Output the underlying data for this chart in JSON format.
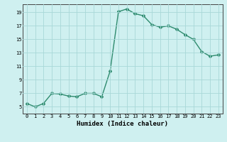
{
  "x": [
    0,
    1,
    2,
    3,
    4,
    5,
    6,
    7,
    8,
    9,
    10,
    11,
    12,
    13,
    14,
    15,
    16,
    17,
    18,
    19,
    20,
    21,
    22,
    23
  ],
  "y": [
    5.5,
    5.0,
    5.5,
    7.0,
    6.9,
    6.6,
    6.5,
    7.0,
    7.0,
    6.5,
    10.3,
    19.1,
    19.5,
    18.8,
    18.5,
    17.2,
    16.8,
    17.0,
    16.5,
    15.7,
    15.0,
    13.2,
    12.5,
    12.7
  ],
  "title": "",
  "xlabel": "Humidex (Indice chaleur)",
  "ylabel": "",
  "line_color": "#2e8b6e",
  "marker": "D",
  "marker_size": 2.0,
  "line_width": 1.0,
  "bg_color": "#cff0f0",
  "grid_color": "#a8d8d8",
  "xlim": [
    -0.5,
    23.5
  ],
  "ylim": [
    4,
    20.2
  ],
  "yticks": [
    5,
    7,
    9,
    11,
    13,
    15,
    17,
    19
  ],
  "xticks": [
    0,
    1,
    2,
    3,
    4,
    5,
    6,
    7,
    8,
    9,
    10,
    11,
    12,
    13,
    14,
    15,
    16,
    17,
    18,
    19,
    20,
    21,
    22,
    23
  ],
  "tick_fontsize": 5.0,
  "xlabel_fontsize": 6.5
}
